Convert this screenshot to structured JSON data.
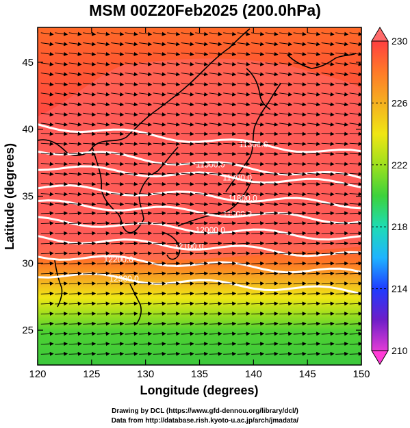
{
  "title": "MSM 00Z20Feb2025 (200.0hPa)",
  "axes": {
    "xlabel": "Longitude (degrees)",
    "ylabel": "Latitude  (degrees)",
    "xlim": [
      120,
      150
    ],
    "ylim": [
      22.4,
      47.6
    ],
    "xticks": [
      "120",
      "125",
      "130",
      "135",
      "140",
      "145",
      "150"
    ],
    "yticks": [
      "25",
      "30",
      "35",
      "40",
      "45"
    ]
  },
  "colorbar": {
    "range": [
      210,
      230
    ],
    "labels": [
      "230",
      "226",
      "222",
      "218",
      "214",
      "210"
    ],
    "colors": {
      "magenta": "#e23cd6",
      "blue": "#1e3cff",
      "cyan": "#1edcdc",
      "green": "#3cd23c",
      "yellow": "#f0e614",
      "orange": "#ff7a28",
      "red": "#ff3c3c",
      "pink": "#ff7a7a"
    }
  },
  "contours": {
    "color": "#ffffff",
    "labels": [
      "11500.0",
      "11600.0",
      "11700.0",
      "11800.0",
      "11900.0",
      "12000.0",
      "12100.0",
      "12200.0",
      "12300.0"
    ]
  },
  "overlay": {
    "vectors": "wind-arrows",
    "coastline_color": "#000000"
  },
  "credits": {
    "line1": "Drawing by DCL (https://www.gfd-dennou.org/library/dcl/)",
    "line2": "Data from http://database.rish.kyoto-u.ac.jp/arch/jmadata/"
  }
}
